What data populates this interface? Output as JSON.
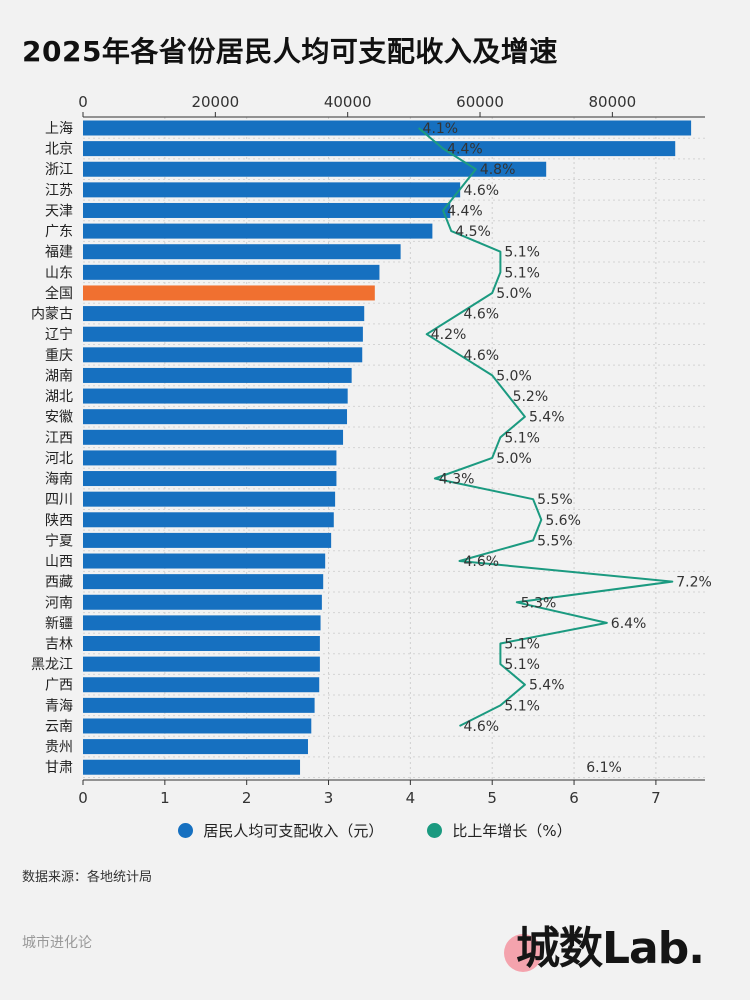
{
  "title": "2025年各省份居民人均可支配收入及增速",
  "chart_data": {
    "type": "bar",
    "orientation": "horizontal",
    "categories": [
      "上海",
      "北京",
      "浙江",
      "江苏",
      "天津",
      "广东",
      "福建",
      "山东",
      "全国",
      "内蒙古",
      "辽宁",
      "重庆",
      "湖南",
      "湖北",
      "安徽",
      "江西",
      "河北",
      "海南",
      "四川",
      "陕西",
      "宁夏",
      "山西",
      "西藏",
      "河南",
      "新疆",
      "吉林",
      "黑龙江",
      "广西",
      "青海",
      "云南",
      "贵州",
      "甘肃"
    ],
    "highlight_category": "全国",
    "series": [
      {
        "name": "居民人均可支配收入（元）",
        "axis": "top",
        "values": [
          91900,
          89500,
          70000,
          57000,
          55500,
          52800,
          48000,
          44800,
          44100,
          42500,
          42300,
          42200,
          40600,
          40000,
          39900,
          39300,
          38300,
          38300,
          38100,
          37900,
          37500,
          36600,
          36300,
          36100,
          35900,
          35800,
          35800,
          35700,
          35000,
          34500,
          34000,
          32800
        ]
      },
      {
        "name": "比上年增长（%）",
        "axis": "bottom",
        "type": "line",
        "values": [
          4.1,
          4.4,
          4.8,
          4.6,
          4.4,
          4.5,
          5.1,
          5.1,
          5.0,
          4.6,
          4.2,
          4.6,
          5.0,
          5.2,
          5.4,
          5.1,
          5.0,
          4.3,
          5.5,
          5.6,
          5.5,
          4.6,
          7.2,
          5.3,
          6.4,
          5.1,
          5.1,
          5.4,
          5.1,
          4.6,
          null,
          6.1
        ],
        "labels": [
          "4.1%",
          "4.4%",
          "4.8%",
          "4.6%",
          "4.4%",
          "4.5%",
          "5.1%",
          "5.1%",
          "5.0%",
          "4.6%",
          "4.2%",
          "4.6%",
          "5.0%",
          "5.2%",
          "5.4%",
          "5.1%",
          "5.0%",
          "4.3%",
          "5.5%",
          "5.6%",
          "5.5%",
          "4.6%",
          "7.2%",
          "5.3%",
          "6.4%",
          "5.1%",
          "5.1%",
          "5.4%",
          "5.1%",
          "4.6%",
          "",
          "6.1%"
        ]
      }
    ],
    "top_axis": {
      "ticks": [
        0,
        20000,
        40000,
        60000,
        80000
      ],
      "tick_labels": [
        "0",
        "20000",
        "40000",
        "60000",
        "80000"
      ],
      "range": [
        0,
        94000
      ]
    },
    "bottom_axis": {
      "ticks": [
        0,
        1,
        2,
        3,
        4,
        5,
        6,
        7
      ],
      "tick_labels": [
        "0",
        "1",
        "2",
        "3",
        "4",
        "5",
        "6",
        "7"
      ],
      "range": [
        0,
        7.6
      ]
    },
    "grid": true
  },
  "colors": {
    "bar": "#1670c0",
    "highlight_bar": "#f07030",
    "line": "#1b9a80"
  },
  "legend": {
    "income_label": "居民人均可支配收入（元）",
    "growth_label": "比上年增长（%）"
  },
  "source": "数据来源：各地统计局",
  "footer_left": "城市进化论",
  "logo_text": "城数Lab."
}
